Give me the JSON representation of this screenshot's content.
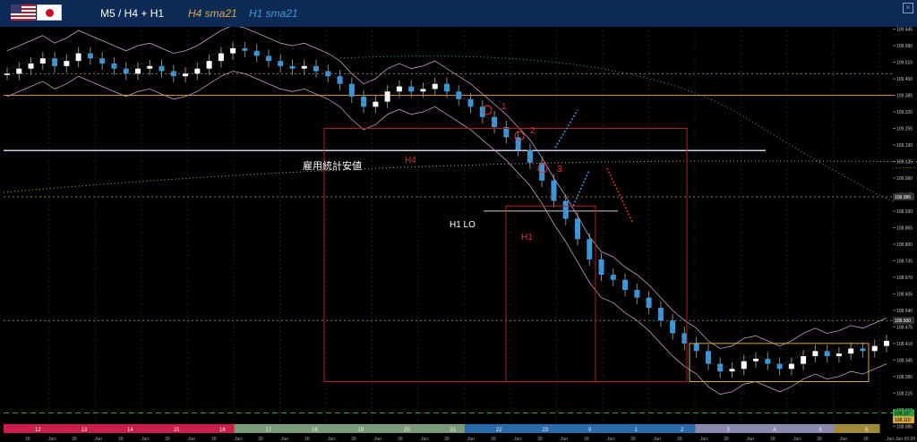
{
  "header": {
    "title": "M5 / H4 + H1",
    "legend_h4": "H4 sma21",
    "legend_h1": "H1 sma21",
    "flags": [
      "us-flag-icon",
      "jp-flag-icon"
    ],
    "close_glyph": "×"
  },
  "chart_data": {
    "type": "candlestick",
    "ylim": [
      108.1,
      109.64
    ],
    "y_ticks": [
      "109.645",
      "109.580",
      "109.515",
      "109.450",
      "109.385",
      "109.320",
      "109.255",
      "109.190",
      "109.125",
      "109.060",
      "108.995",
      "108.930",
      "108.865",
      "108.800",
      "108.735",
      "108.670",
      "108.605",
      "108.540",
      "108.475",
      "108.410",
      "108.345",
      "108.280",
      "108.215",
      "108.150",
      "108.085"
    ],
    "x_ticks_major": [
      "12",
      "13",
      "14",
      "15",
      "16",
      "17",
      "18",
      "19",
      "20",
      "21",
      "22",
      "23",
      "0",
      "1",
      "2",
      "3",
      "4",
      "5",
      "6"
    ],
    "x_ticks_minor": [
      "30",
      "Jun",
      "30",
      "Jun",
      "30",
      "Jun",
      "30",
      "Jun",
      "30",
      "Jun",
      "30",
      "Jun",
      "30",
      "Jun",
      "30",
      "Jun",
      "30",
      "Jun",
      "30",
      "Jun",
      "30",
      "Jun",
      "30",
      "Jun",
      "30",
      "Jun",
      "30",
      "Jun",
      "30",
      "Jun",
      "30",
      "Jun",
      "30",
      "Jun",
      "30",
      "Jun",
      "30",
      "Jun",
      "Jun 00:20"
    ],
    "price_tags": [
      {
        "value": "108.986",
        "color": "#ffffff"
      },
      {
        "value": "108.500",
        "color": "#ffffff"
      },
      {
        "value": "108.137",
        "color": "#2ea043"
      },
      {
        "value": "108.110",
        "color": "#d9a93b"
      }
    ],
    "close_series": [
      109.47,
      109.49,
      109.51,
      109.53,
      109.5,
      109.52,
      109.55,
      109.53,
      109.51,
      109.49,
      109.47,
      109.49,
      109.5,
      109.48,
      109.46,
      109.47,
      109.49,
      109.52,
      109.55,
      109.57,
      109.56,
      109.54,
      109.52,
      109.5,
      109.49,
      109.5,
      109.48,
      109.46,
      109.43,
      109.38,
      109.34,
      109.36,
      109.4,
      109.42,
      109.4,
      109.41,
      109.43,
      109.4,
      109.37,
      109.34,
      109.3,
      109.26,
      109.22,
      109.17,
      109.12,
      109.05,
      108.97,
      108.9,
      108.82,
      108.74,
      108.68,
      108.66,
      108.62,
      108.59,
      108.55,
      108.5,
      108.45,
      108.41,
      108.38,
      108.33,
      108.3,
      108.31,
      108.34,
      108.35,
      108.33,
      108.31,
      108.33,
      108.36,
      108.38,
      108.36,
      108.37,
      108.39,
      108.38,
      108.4,
      108.42
    ],
    "annotations": [
      {
        "text": "雇用統計安値",
        "color": "#ffffff"
      },
      {
        "text": "H4",
        "color": "#e0303a"
      },
      {
        "text": "H1",
        "color": "#e0303a"
      },
      {
        "text": "H1 LO",
        "color": "#ffffff"
      },
      {
        "text": "1",
        "color": "#e0303a"
      },
      {
        "text": "2",
        "color": "#e0303a"
      },
      {
        "text": "3",
        "color": "#e0303a"
      }
    ],
    "colors": {
      "up": "#ffffff",
      "down": "#3a9ad9",
      "band": "#c89ac8",
      "h4_sma": "#d9a93b",
      "h1_sma": "#3a9ad9",
      "level": "#d98a2b",
      "box": "#b02020",
      "range_box": "#d9a93b"
    }
  }
}
